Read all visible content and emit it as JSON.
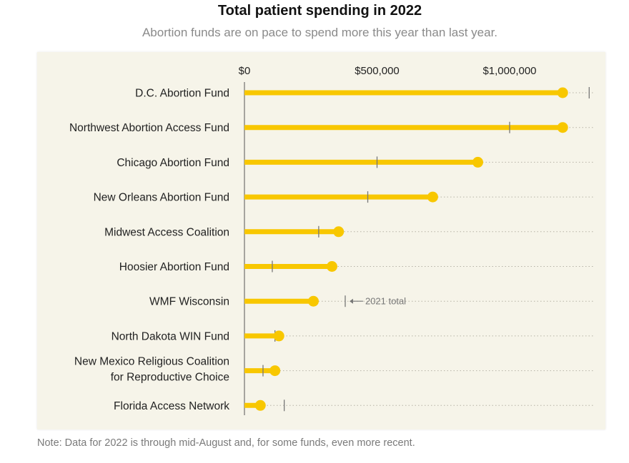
{
  "chart_data": {
    "type": "bar",
    "title": "Total patient spending in 2022",
    "subtitle": "Abortion funds are on pace to spend more this year than last year.",
    "note": "Note: Data for 2022 is through mid-August and, for some funds, even more recent.",
    "x_ticks": [
      {
        "value": 0,
        "label": "$0"
      },
      {
        "value": 500000,
        "label": "$500,000"
      },
      {
        "value": 1000000,
        "label": "$1,000,000"
      }
    ],
    "xlim": [
      0,
      1300000
    ],
    "annotation": "2021 total",
    "colors": {
      "bar": "#f8c700",
      "marker_2021": "#777777",
      "background": "#f6f4e9"
    },
    "categories": [
      [
        "D.C. Abortion Fund"
      ],
      [
        "Northwest Abortion Access Fund"
      ],
      [
        "Chicago Abortion Fund"
      ],
      [
        "New Orleans Abortion Fund"
      ],
      [
        "Midwest Access Coalition"
      ],
      [
        "Hoosier Abortion Fund"
      ],
      [
        "WMF Wisconsin"
      ],
      [
        "North Dakota WIN Fund"
      ],
      [
        "New Mexico Religious Coalition",
        "for Reproductive Choice"
      ],
      [
        "Florida Access Network"
      ]
    ],
    "series": [
      {
        "values": [
          1200000,
          1200000,
          880000,
          710000,
          355000,
          330000,
          260000,
          130000,
          115000,
          60000
        ]
      },
      {
        "values": [
          1300000,
          1000000,
          500000,
          465000,
          280000,
          105000,
          380000,
          115000,
          70000,
          150000
        ]
      }
    ]
  }
}
